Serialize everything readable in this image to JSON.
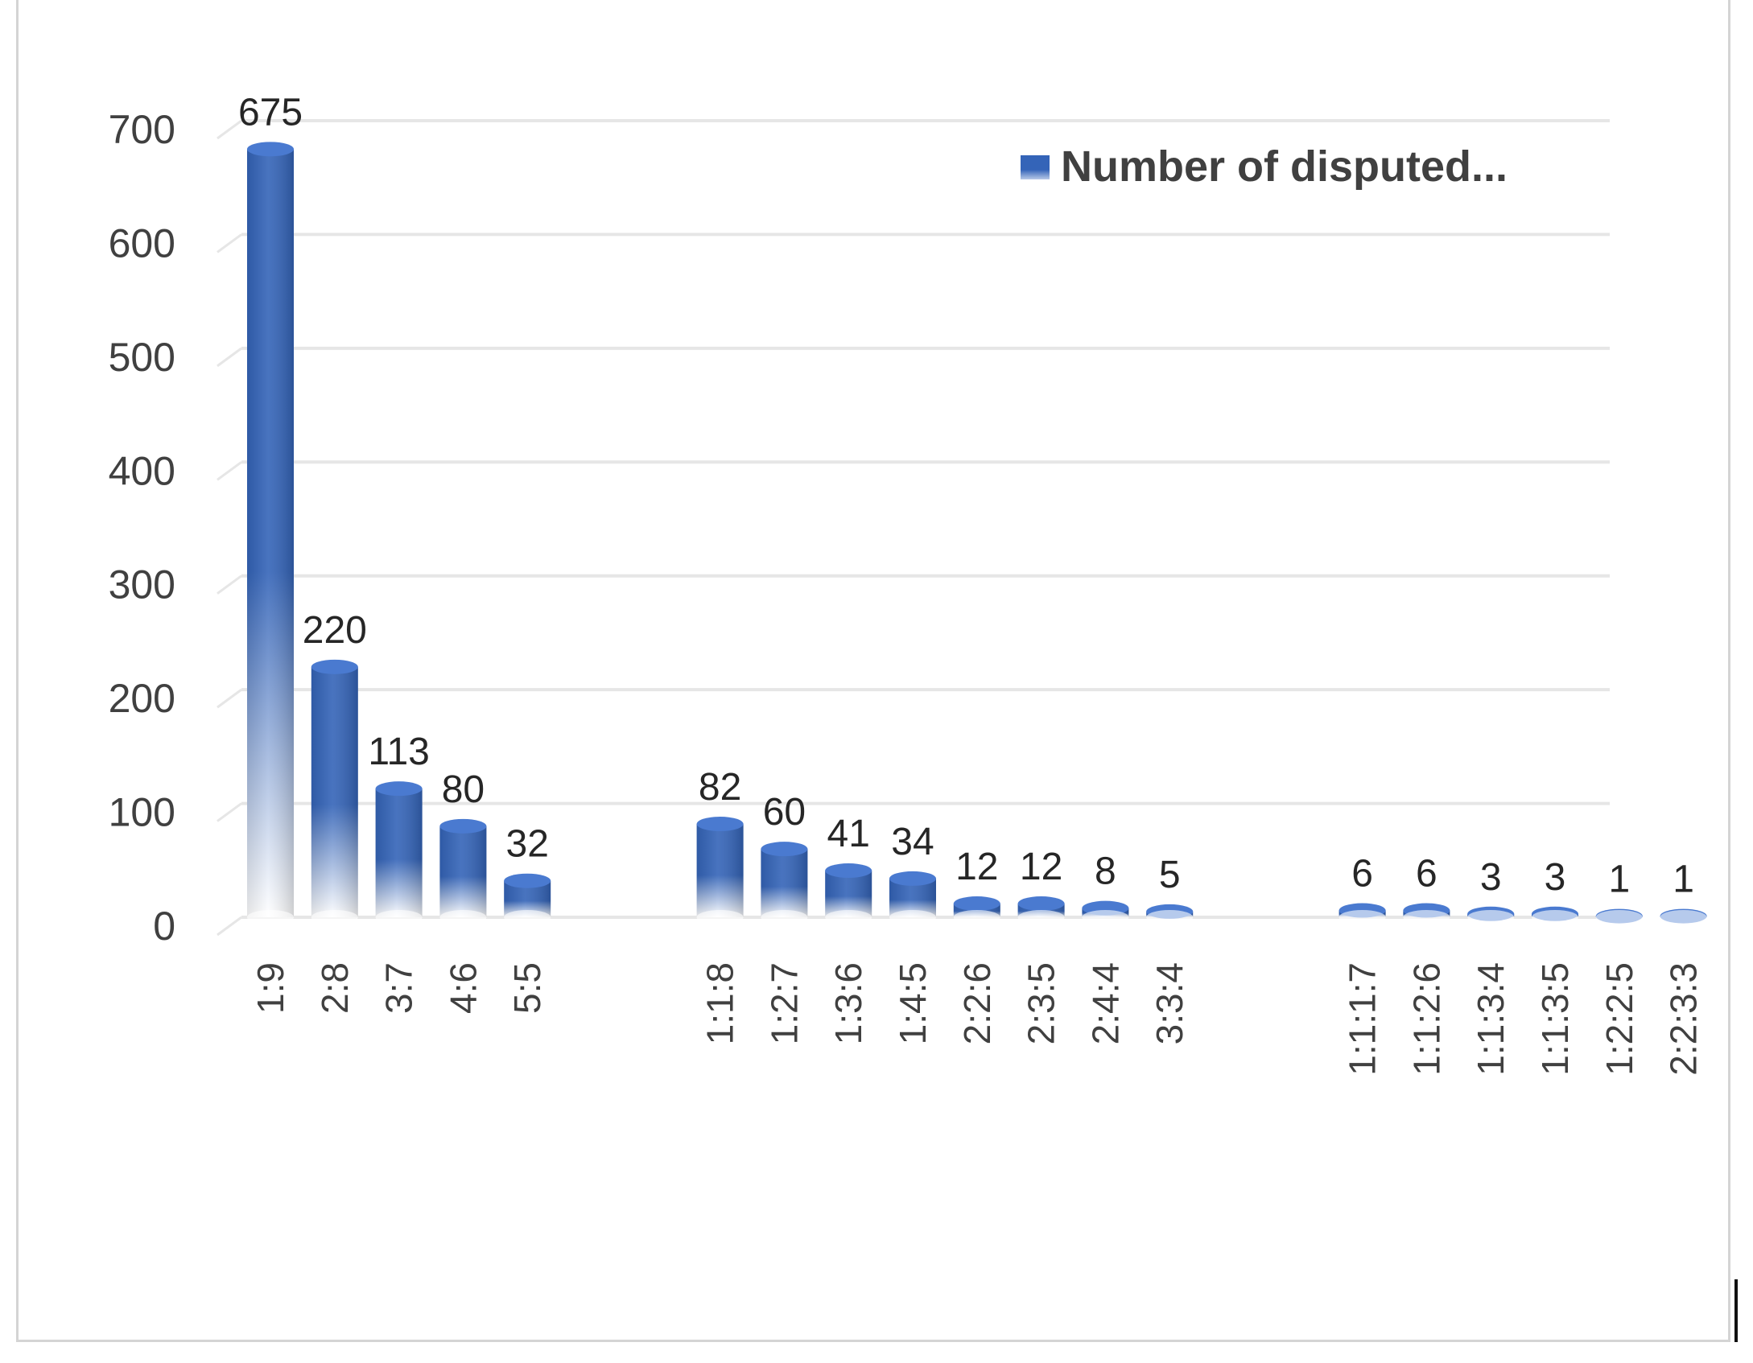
{
  "chart_data": {
    "type": "bar",
    "categories": [
      "1:9",
      "2:8",
      "3:7",
      "4:6",
      "5:5",
      "1:1:8",
      "1:2:7",
      "1:3:6",
      "1:4:5",
      "2:2:6",
      "2:3:5",
      "2:4:4",
      "3:3:4",
      "1:1:1:7",
      "1:1:2:6",
      "1:1:3:4",
      "1:1:3:5",
      "1:2:2:5",
      "2:2:3:3"
    ],
    "groups": [
      5,
      8,
      6
    ],
    "series": [
      {
        "name": "Number of disputed...",
        "values": [
          675,
          220,
          113,
          80,
          32,
          82,
          60,
          41,
          34,
          12,
          12,
          8,
          5,
          6,
          6,
          3,
          3,
          1,
          1
        ]
      }
    ],
    "yticks": [
      0,
      100,
      200,
      300,
      400,
      500,
      600,
      700
    ],
    "ylim": [
      0,
      700
    ],
    "grid": true,
    "legend_position": "top-right",
    "colors": {
      "bar": "#3464b8",
      "bar_light": "#ffffff",
      "grid": "#e6e6e6",
      "text": "#404040",
      "label": "#262626"
    }
  }
}
